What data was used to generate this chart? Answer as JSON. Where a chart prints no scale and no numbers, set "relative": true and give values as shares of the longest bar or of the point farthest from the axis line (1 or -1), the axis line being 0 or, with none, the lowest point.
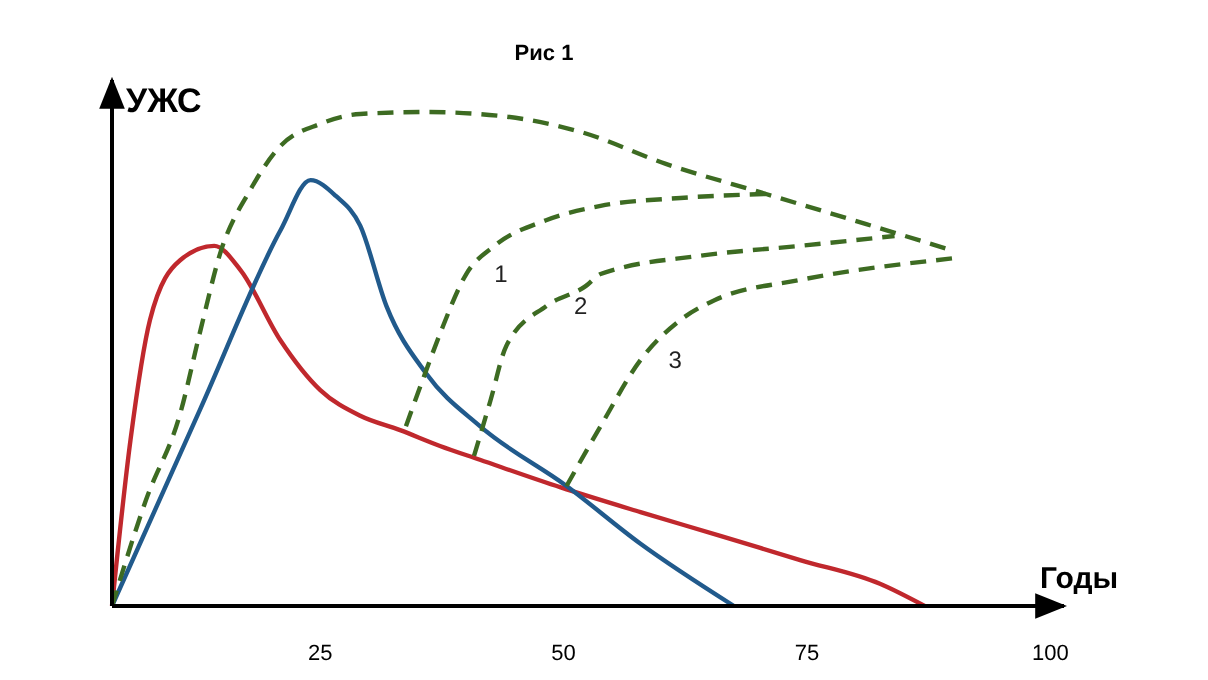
{
  "chart_data": {
    "type": "line",
    "title": "Рис 1",
    "xlabel": "Годы",
    "ylabel": "УЖС",
    "relative": true,
    "xlim": [
      3.6,
      101
    ],
    "xticks": [
      25,
      50,
      75,
      100
    ],
    "grid": false,
    "series": [
      {
        "color": "#c0282d",
        "line_style": "solid",
        "x": [
          3.6,
          5.5,
          7.5,
          10.6,
          14.1,
          16.8,
          20.9,
          25,
          29.1,
          33.2,
          37.3,
          41.4,
          49.7,
          57.9,
          66.1,
          74.3,
          82.5,
          87.1
        ],
        "values": [
          0,
          0.336,
          0.579,
          0.7,
          0.729,
          0.68,
          0.538,
          0.437,
          0.385,
          0.356,
          0.324,
          0.296,
          0.24,
          0.19,
          0.142,
          0.093,
          0.045,
          0
        ]
      },
      {
        "color": "#215a8c",
        "line_style": "solid",
        "x": [
          3.6,
          12.7,
          20.9,
          24.0,
          26.6,
          29.1,
          31.8,
          35.9,
          41.4,
          50.3,
          57.9,
          67.5
        ],
        "values": [
          0,
          0.4,
          0.76,
          0.862,
          0.83,
          0.77,
          0.607,
          0.47,
          0.364,
          0.243,
          0.126,
          0
        ]
      },
      {
        "color": "#3d6b22",
        "line_style": "dashed",
        "x": [
          3.6,
          7.1,
          10.6,
          12.7,
          14.7,
          17.8,
          20.9,
          25,
          29.1,
          35.9,
          43.5,
          51.7,
          60.5,
          70.8,
          81.1,
          89.7
        ],
        "values": [
          0,
          0.215,
          0.389,
          0.559,
          0.713,
          0.842,
          0.931,
          0.976,
          0.996,
          1,
          0.992,
          0.96,
          0.895,
          0.834,
          0.773,
          0.721
        ]
      },
      {
        "name": "1",
        "color": "#3d6b22",
        "line_style": "dashed",
        "x": [
          33.8,
          35.9,
          37.3,
          40.0,
          42.9,
          48.2,
          53.8,
          62.0,
          70.8
        ],
        "values": [
          0.364,
          0.478,
          0.551,
          0.672,
          0.729,
          0.781,
          0.81,
          0.826,
          0.834
        ]
      },
      {
        "name": "2",
        "color": "#3d6b22",
        "line_style": "dashed",
        "x": [
          40.8,
          42.5,
          44.1,
          48.2,
          52.3,
          53.8,
          64.0,
          74.3,
          84.0
        ],
        "values": [
          0.304,
          0.417,
          0.526,
          0.607,
          0.648,
          0.672,
          0.709,
          0.729,
          0.749
        ]
      },
      {
        "name": "3",
        "color": "#3d6b22",
        "line_style": "dashed",
        "x": [
          50.3,
          53.8,
          57.9,
          62.0,
          65.5,
          74.3,
          90.1
        ],
        "values": [
          0.243,
          0.364,
          0.498,
          0.579,
          0.619,
          0.66,
          0.704
        ]
      }
    ]
  }
}
